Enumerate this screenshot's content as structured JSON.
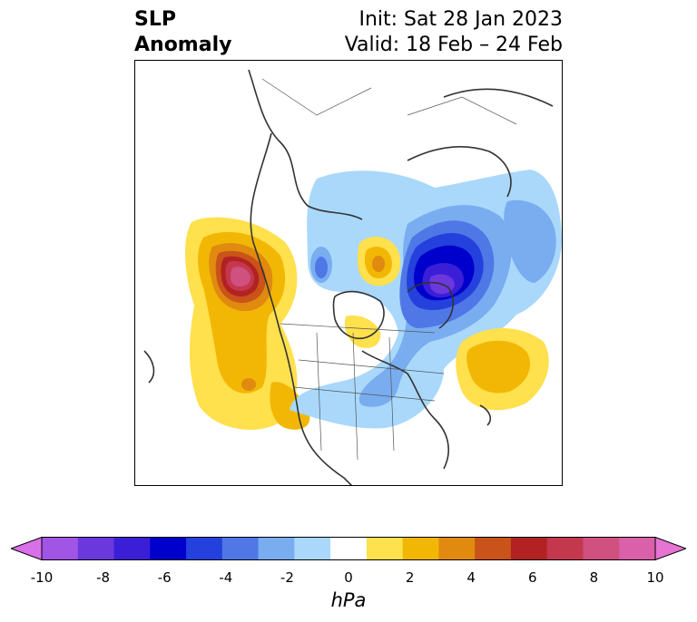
{
  "title": {
    "field": "SLP",
    "field2": "Anomaly",
    "init": "Init: Sat 28 Jan 2023",
    "valid": "Valid: 18 Feb – 24 Feb"
  },
  "colorbar": {
    "label": "hPa",
    "ticks": [
      "-10",
      "-8",
      "-6",
      "-4",
      "-2",
      "0",
      "2",
      "4",
      "6",
      "8",
      "10"
    ],
    "colors": [
      "#d970e9",
      "#a155e4",
      "#6b38de",
      "#3a1fd6",
      "#0000cc",
      "#2441dd",
      "#4f78e6",
      "#79adf0",
      "#a9d8fb",
      "#ffffff",
      "#ffe04d",
      "#f2b705",
      "#e08a10",
      "#c95318",
      "#b22222",
      "#c4384e",
      "#d05080",
      "#d960a9",
      "#e574d2"
    ]
  }
}
